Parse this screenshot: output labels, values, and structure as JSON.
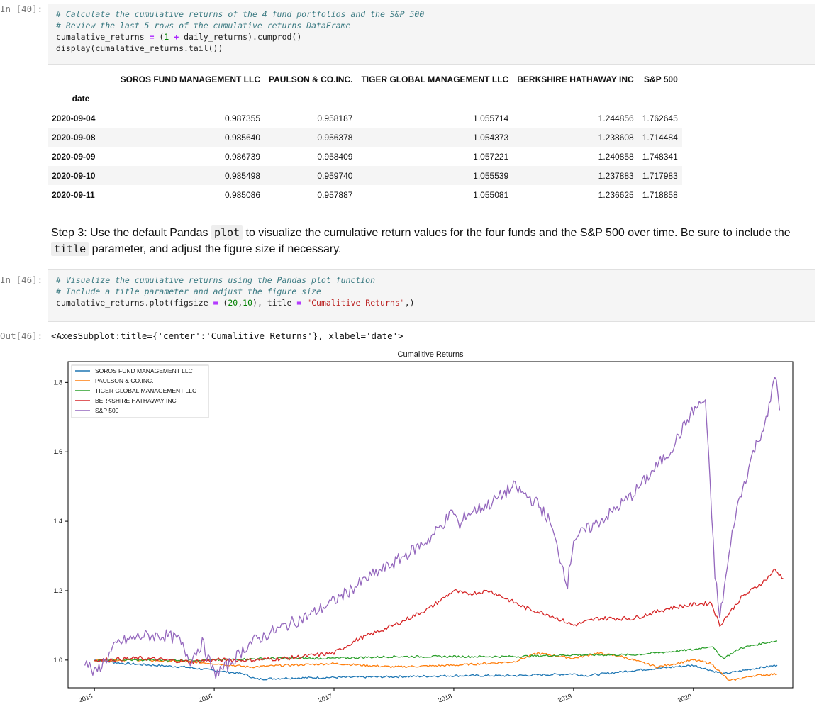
{
  "cell40": {
    "prompt": "In [40]:",
    "lines": [
      {
        "parts": [
          {
            "c": "cm",
            "t": "# Calculate the cumulative returns of the 4 fund portfolios and the S&P 500"
          }
        ]
      },
      {
        "parts": [
          {
            "c": "cm",
            "t": "# Review the last 5 rows of the cumulative returns DataFrame"
          }
        ]
      },
      {
        "parts": [
          {
            "c": "txt",
            "t": "cumalative_returns "
          },
          {
            "c": "op",
            "t": "="
          },
          {
            "c": "txt",
            "t": " ("
          },
          {
            "c": "num",
            "t": "1"
          },
          {
            "c": "txt",
            "t": " "
          },
          {
            "c": "op",
            "t": "+"
          },
          {
            "c": "txt",
            "t": " daily_returns).cumprod()"
          }
        ]
      },
      {
        "parts": [
          {
            "c": "txt",
            "t": "display(cumalative_returns.tail())"
          }
        ]
      }
    ]
  },
  "dataframe": {
    "columns": [
      "SOROS FUND MANAGEMENT LLC",
      "PAULSON & CO.INC.",
      "TIGER GLOBAL MANAGEMENT LLC",
      "BERKSHIRE HATHAWAY INC",
      "S&P 500"
    ],
    "index_name": "date",
    "rows": [
      {
        "date": "2020-09-04",
        "values": [
          "0.987355",
          "0.958187",
          "1.055714",
          "1.244856",
          "1.762645"
        ]
      },
      {
        "date": "2020-09-08",
        "values": [
          "0.985640",
          "0.956378",
          "1.054373",
          "1.238608",
          "1.714484"
        ]
      },
      {
        "date": "2020-09-09",
        "values": [
          "0.986739",
          "0.958409",
          "1.057221",
          "1.240858",
          "1.748341"
        ]
      },
      {
        "date": "2020-09-10",
        "values": [
          "0.985498",
          "0.959740",
          "1.055539",
          "1.237883",
          "1.717983"
        ]
      },
      {
        "date": "2020-09-11",
        "values": [
          "0.985086",
          "0.957887",
          "1.055081",
          "1.236625",
          "1.718858"
        ]
      }
    ]
  },
  "markdown": {
    "before_plot": "Step 3: Use the default Pandas ",
    "code_plot": "plot",
    "mid_text": " to visualize the cumulative return values for the four funds and the S&P 500 over time. Be sure to include the ",
    "code_title": "title",
    "after_title": " parameter, and adjust the figure size if necessary."
  },
  "cell46": {
    "prompt": "In [46]:",
    "lines": [
      {
        "parts": [
          {
            "c": "cm",
            "t": "# Visualize the cumulative returns using the Pandas plot function"
          }
        ]
      },
      {
        "parts": [
          {
            "c": "cm",
            "t": "# Include a title parameter and adjust the figure size"
          }
        ]
      },
      {
        "parts": [
          {
            "c": "txt",
            "t": "cumalative_returns.plot(figsize "
          },
          {
            "c": "op",
            "t": "="
          },
          {
            "c": "txt",
            "t": " ("
          },
          {
            "c": "num",
            "t": "20"
          },
          {
            "c": "txt",
            "t": ","
          },
          {
            "c": "num",
            "t": "10"
          },
          {
            "c": "txt",
            "t": "), title "
          },
          {
            "c": "op",
            "t": "="
          },
          {
            "c": "txt",
            "t": " "
          },
          {
            "c": "str",
            "t": "\"Cumalitive Returns\""
          },
          {
            "c": "txt",
            "t": ",)"
          }
        ]
      }
    ]
  },
  "out46": {
    "prompt": "Out[46]:",
    "text": "<AxesSubplot:title={'center':'Cumalitive Returns'}, xlabel='date'>"
  },
  "chart_data": {
    "type": "line",
    "title": "Cumalitive Returns",
    "xlabel": "",
    "ylabel": "",
    "xlim": [
      2014.78,
      2020.83
    ],
    "ylim": [
      0.92,
      1.86
    ],
    "x_ticks": [
      "2015",
      "2016",
      "2017",
      "2018",
      "2019",
      "2020"
    ],
    "y_ticks": [
      "1.0",
      "1.2",
      "1.4",
      "1.6",
      "1.8"
    ],
    "legend_position": "top-left",
    "grid": false,
    "series": [
      {
        "name": "SOROS FUND MANAGEMENT LLC",
        "color": "#1f77b4",
        "x": [
          2015.0,
          2015.25,
          2015.5,
          2015.75,
          2016.0,
          2016.25,
          2016.35,
          2016.6,
          2017.0,
          2017.5,
          2018.0,
          2018.5,
          2019.0,
          2019.1,
          2019.5,
          2020.0,
          2020.25,
          2020.5,
          2020.7
        ],
        "y": [
          1.0,
          0.99,
          0.985,
          0.98,
          0.97,
          0.96,
          0.945,
          0.948,
          0.95,
          0.952,
          0.955,
          0.955,
          0.96,
          0.955,
          0.97,
          0.985,
          0.96,
          0.975,
          0.985
        ]
      },
      {
        "name": "PAULSON & CO.INC.",
        "color": "#ff7f0e",
        "x": [
          2015.0,
          2015.4,
          2015.8,
          2016.0,
          2016.3,
          2016.6,
          2017.0,
          2017.5,
          2018.0,
          2018.5,
          2018.7,
          2019.0,
          2019.2,
          2019.4,
          2019.7,
          2020.0,
          2020.15,
          2020.3,
          2020.5,
          2020.7
        ],
        "y": [
          1.0,
          1.0,
          0.995,
          0.99,
          0.98,
          0.985,
          0.99,
          0.98,
          0.985,
          0.995,
          1.02,
          1.005,
          1.02,
          1.01,
          0.98,
          1.0,
          0.99,
          0.94,
          0.955,
          0.96
        ]
      },
      {
        "name": "TIGER GLOBAL MANAGEMENT LLC",
        "color": "#2ca02c",
        "x": [
          2015.0,
          2015.5,
          2016.0,
          2016.5,
          2017.0,
          2017.5,
          2018.0,
          2018.5,
          2019.0,
          2019.5,
          2020.0,
          2020.15,
          2020.25,
          2020.4,
          2020.6,
          2020.7
        ],
        "y": [
          1.0,
          1.0,
          1.0,
          1.005,
          1.005,
          1.01,
          1.01,
          1.01,
          1.015,
          1.015,
          1.03,
          1.04,
          1.005,
          1.035,
          1.05,
          1.055
        ]
      },
      {
        "name": "BERKSHIRE HATHAWAY INC",
        "color": "#d62728",
        "x": [
          2015.0,
          2015.4,
          2015.8,
          2016.0,
          2016.3,
          2016.6,
          2017.0,
          2017.2,
          2017.5,
          2017.8,
          2018.0,
          2018.1,
          2018.3,
          2018.6,
          2018.8,
          2019.0,
          2019.2,
          2019.5,
          2019.8,
          2020.0,
          2020.15,
          2020.22,
          2020.4,
          2020.6,
          2020.68,
          2020.75
        ],
        "y": [
          1.0,
          1.005,
          0.995,
          1.0,
          1.0,
          1.005,
          1.02,
          1.06,
          1.1,
          1.15,
          1.2,
          1.19,
          1.2,
          1.15,
          1.13,
          1.1,
          1.12,
          1.12,
          1.15,
          1.16,
          1.165,
          1.1,
          1.18,
          1.23,
          1.26,
          1.235
        ]
      },
      {
        "name": "S&P 500",
        "color": "#9467bd",
        "x": [
          2014.92,
          2015.0,
          2015.2,
          2015.4,
          2015.6,
          2015.7,
          2015.8,
          2015.9,
          2016.0,
          2016.1,
          2016.3,
          2016.6,
          2016.8,
          2017.0,
          2017.3,
          2017.5,
          2017.8,
          2018.0,
          2018.05,
          2018.1,
          2018.3,
          2018.5,
          2018.7,
          2018.8,
          2018.95,
          2019.0,
          2019.3,
          2019.5,
          2019.8,
          2020.0,
          2020.1,
          2020.18,
          2020.22,
          2020.35,
          2020.5,
          2020.62,
          2020.68,
          2020.72
        ],
        "y": [
          1.0,
          0.96,
          1.05,
          1.07,
          1.07,
          1.06,
          1.0,
          1.05,
          0.96,
          0.98,
          1.05,
          1.1,
          1.13,
          1.17,
          1.24,
          1.28,
          1.35,
          1.43,
          1.38,
          1.42,
          1.45,
          1.5,
          1.45,
          1.4,
          1.22,
          1.35,
          1.42,
          1.48,
          1.6,
          1.72,
          1.75,
          1.25,
          1.12,
          1.42,
          1.6,
          1.7,
          1.83,
          1.72
        ]
      }
    ]
  }
}
